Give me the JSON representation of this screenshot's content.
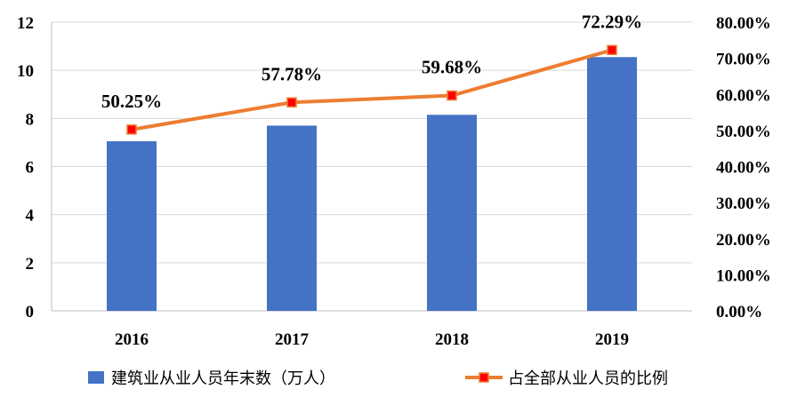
{
  "chart_data": {
    "type": "bar+line",
    "categories": [
      "2016",
      "2017",
      "2018",
      "2019"
    ],
    "series": [
      {
        "name": "建筑业从业人员年末数（万人）",
        "type": "bar",
        "axis": "left",
        "values": [
          7.05,
          7.7,
          8.15,
          10.55
        ],
        "color": "#4472C4"
      },
      {
        "name": "占全部从业人员的比例",
        "type": "line",
        "axis": "right",
        "values": [
          50.25,
          57.78,
          59.68,
          72.29
        ],
        "labels": [
          "50.25%",
          "57.78%",
          "59.68%",
          "72.29%"
        ],
        "color": "#ED7D31",
        "marker_color": "#FF0000"
      }
    ],
    "left_axis": {
      "min": 0,
      "max": 12,
      "ticks": [
        "0",
        "2",
        "4",
        "6",
        "8",
        "10",
        "12"
      ]
    },
    "right_axis": {
      "min": 0,
      "max": 80,
      "ticks": [
        "0.00%",
        "10.00%",
        "20.00%",
        "30.00%",
        "40.00%",
        "50.00%",
        "60.00%",
        "70.00%",
        "80.00%"
      ]
    },
    "grid": true,
    "legend_position": "bottom"
  }
}
